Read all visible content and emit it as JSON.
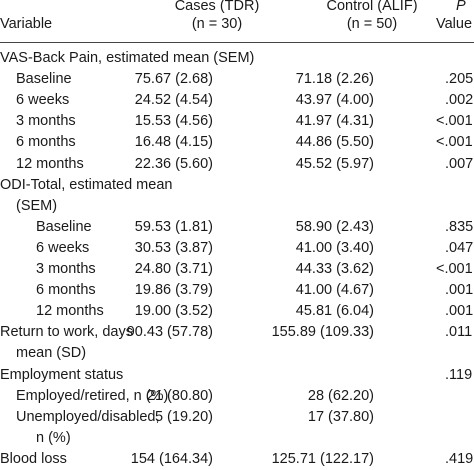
{
  "header": {
    "variable": "Variable",
    "cases_line1": "Cases (TDR)",
    "cases_line2": "(n = 30)",
    "control_line1": "Control (ALIF)",
    "control_line2": "(n = 50)",
    "p_line1": "P",
    "p_line2": "Value"
  },
  "rows": [
    {
      "label": "VAS-Back Pain, estimated mean (SEM)",
      "cases": "",
      "control": "",
      "p": ""
    },
    {
      "label": "Baseline",
      "cases": "75.67 (2.68)",
      "control": "71.18 (2.26)",
      "p": ".205"
    },
    {
      "label": "6 weeks",
      "cases": "24.52 (4.54)",
      "control": "43.97 (4.00)",
      "p": ".002"
    },
    {
      "label": "3 months",
      "cases": "15.53 (4.56)",
      "control": "41.97 (4.31)",
      "p": "<.001"
    },
    {
      "label": "6 months",
      "cases": "16.48 (4.15)",
      "control": "44.86 (5.50)",
      "p": "<.001"
    },
    {
      "label": "12 months",
      "cases": "22.36 (5.60)",
      "control": "45.52 (5.97)",
      "p": ".007"
    },
    {
      "label": "ODI-Total, estimated mean",
      "cases": "",
      "control": "",
      "p": ""
    },
    {
      "label": "(SEM)",
      "cases": "",
      "control": "",
      "p": ""
    },
    {
      "label": "Baseline",
      "cases": "59.53 (1.81)",
      "control": "58.90 (2.43)",
      "p": ".835"
    },
    {
      "label": "6 weeks",
      "cases": "30.53 (3.87)",
      "control": "41.00 (3.40)",
      "p": ".047"
    },
    {
      "label": "3 months",
      "cases": "24.80 (3.71)",
      "control": "44.33 (3.62)",
      "p": "<.001"
    },
    {
      "label": "6 months",
      "cases": "19.86 (3.79)",
      "control": "41.00 (4.67)",
      "p": ".001"
    },
    {
      "label": "12 months",
      "cases": "19.00 (3.52)",
      "control": "45.81 (6.04)",
      "p": ".001"
    },
    {
      "label": "Return to work, days",
      "cases": "90.43 (57.78)",
      "control": "155.89 (109.33)",
      "p": ".011"
    },
    {
      "label": "mean (SD)",
      "cases": "",
      "control": "",
      "p": ""
    },
    {
      "label": "Employment status",
      "cases": "",
      "control": "",
      "p": ".119"
    },
    {
      "label": "Employed/retired, n (%)",
      "cases": "21 (80.80)",
      "control": "28 (62.20)",
      "p": ""
    },
    {
      "label": "Unemployed/disabled,",
      "cases": "5 (19.20)",
      "control": "17 (37.80)",
      "p": ""
    },
    {
      "label": "n (%)",
      "cases": "",
      "control": "",
      "p": ""
    },
    {
      "label": "Blood loss",
      "cases": "154 (164.34)",
      "control": "125.71 (122.17)",
      "p": ".419"
    }
  ]
}
